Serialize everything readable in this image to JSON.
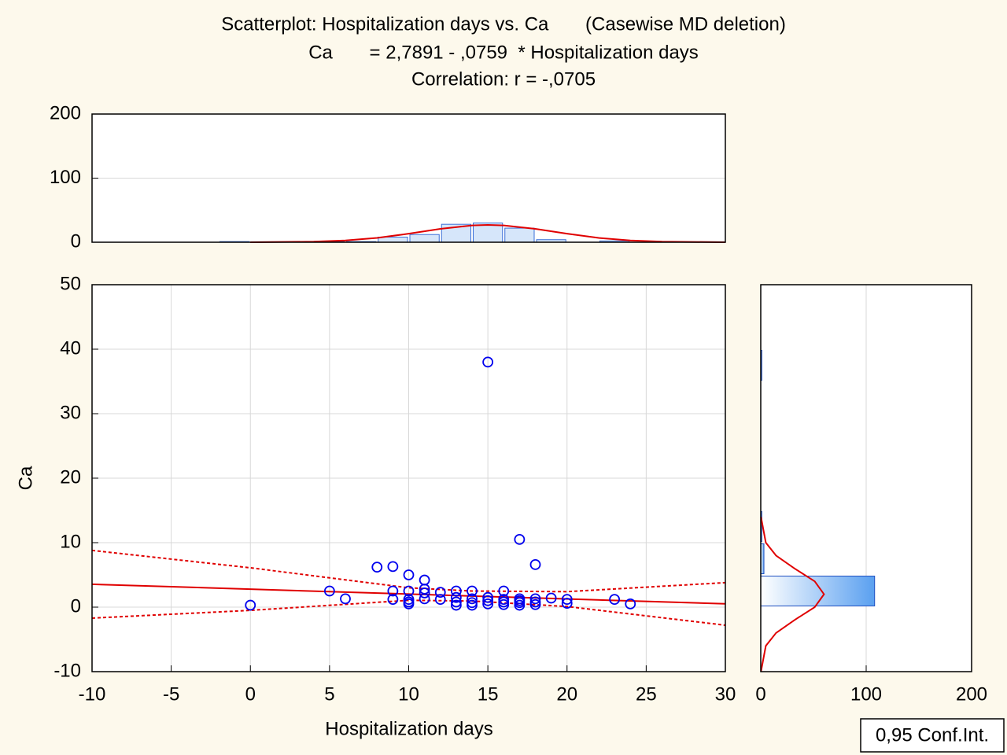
{
  "chart_data": [
    {
      "type": "scatter",
      "title": "Scatterplot: Hospitalization days vs. Ca       (Casewise MD deletion)",
      "equation": "Ca       = 2,7891 - ,0759  * Hospitalization days",
      "correlation_text": "Correlation: r = -,0705",
      "x_label": "Hospitalization days",
      "y_label": "Ca",
      "x": [
        0,
        5,
        6,
        8,
        9,
        9,
        9,
        10,
        10,
        10,
        10,
        10,
        11,
        11,
        11,
        11,
        12,
        12,
        13,
        13,
        13,
        13,
        14,
        14,
        14,
        14,
        15,
        15,
        15,
        15,
        16,
        16,
        16,
        16,
        17,
        17,
        17,
        17,
        17,
        18,
        18,
        18,
        18,
        19,
        20,
        20,
        23,
        24
      ],
      "values": [
        0.3,
        2.5,
        1.3,
        6.2,
        6.3,
        2.5,
        1.2,
        5,
        2.5,
        1.2,
        0.8,
        0.5,
        4.2,
        2.8,
        2.2,
        1.3,
        2.3,
        1.2,
        2.5,
        1.5,
        0.8,
        0.3,
        2.5,
        1.3,
        0.7,
        0.3,
        38,
        1.5,
        1,
        0.5,
        2.5,
        1.2,
        0.8,
        0.4,
        10.5,
        1.3,
        1,
        0.7,
        0.3,
        6.6,
        1.3,
        0.8,
        0.4,
        1.4,
        1.2,
        0.6,
        1.2,
        0.5
      ],
      "color": "#0000ee",
      "fit": {
        "intercept": 2.7891,
        "slope": -0.0759,
        "color": "#e00000"
      },
      "confidence_band": {
        "label": "0,95 Conf.Int.",
        "x": [
          -10,
          0,
          10,
          14,
          20,
          30
        ],
        "upper": [
          8.8,
          6.1,
          3.0,
          2.5,
          2.4,
          3.8
        ],
        "lower": [
          -1.7,
          -0.5,
          1.06,
          0.95,
          0.1,
          -2.8
        ]
      },
      "xlim": [
        -10,
        30
      ],
      "xticks": [
        -10,
        -5,
        0,
        5,
        10,
        15,
        20,
        25,
        30
      ],
      "ylim": [
        -10,
        50
      ],
      "yticks": [
        -10,
        0,
        10,
        20,
        30,
        40,
        50
      ],
      "grid": true
    },
    {
      "type": "histogram",
      "orientation": "vertical",
      "bins": [
        -2,
        0,
        2,
        4,
        6,
        8,
        10,
        12,
        14,
        16,
        18,
        20,
        22,
        24
      ],
      "values": [
        1,
        0,
        0,
        1,
        1,
        8,
        12,
        28,
        30,
        22,
        4,
        0,
        2
      ],
      "color": "#d6e6fa",
      "curve": {
        "x": [
          0,
          4,
          6,
          8,
          10,
          12,
          14,
          15,
          16,
          18,
          20,
          22,
          24,
          26,
          30
        ],
        "values": [
          0.05,
          0.87,
          2.7,
          6.7,
          13.3,
          20.9,
          26.2,
          27,
          26.2,
          20.9,
          13.3,
          6.7,
          2.7,
          0.87,
          0.05
        ]
      },
      "xlim": [
        -10,
        30
      ],
      "ylim": [
        0,
        200
      ],
      "yticks": [
        0,
        100,
        200
      ],
      "grid": true
    },
    {
      "type": "histogram",
      "orientation": "horizontal",
      "bins": [
        0,
        5,
        10,
        15,
        20,
        25,
        30,
        35,
        40
      ],
      "values": [
        108,
        3,
        1,
        0,
        0,
        0,
        0,
        1
      ],
      "color": "#5aa0f0",
      "curve": {
        "y": [
          -10,
          -6,
          -4,
          -2,
          0,
          2,
          4,
          6,
          8,
          10,
          14
        ],
        "values": [
          0.2,
          4.8,
          14.5,
          32,
          51.2,
          60,
          51.2,
          32,
          14.5,
          4.8,
          0.2
        ]
      },
      "xlim": [
        0,
        200
      ],
      "xticks": [
        0,
        100,
        200
      ],
      "ylim": [
        -10,
        50
      ],
      "grid": true
    }
  ]
}
